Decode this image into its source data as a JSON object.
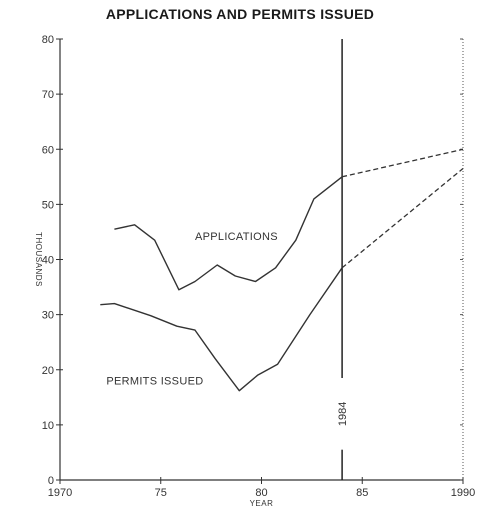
{
  "chart_data": {
    "type": "line",
    "title": "APPLICATIONS AND PERMITS ISSUED",
    "xlabel": "YEAR",
    "ylabel": "THOUSANDS",
    "xlim": [
      1970,
      1990
    ],
    "ylim": [
      0,
      80
    ],
    "x_ticks": [
      {
        "value": 1970,
        "label": "1970"
      },
      {
        "value": 1975,
        "label": "75"
      },
      {
        "value": 1980,
        "label": "80"
      },
      {
        "value": 1985,
        "label": "85"
      },
      {
        "value": 1990,
        "label": "1990"
      }
    ],
    "y_ticks": [
      0,
      10,
      20,
      30,
      40,
      50,
      60,
      70,
      80
    ],
    "grid": false,
    "reference_line": {
      "x": 1984,
      "label": "1984"
    },
    "series": [
      {
        "name": "APPLICATIONS",
        "color": "#333333",
        "points": [
          {
            "x": 1972.7,
            "y": 45.5
          },
          {
            "x": 1973.7,
            "y": 46.3
          },
          {
            "x": 1974.7,
            "y": 43.5
          },
          {
            "x": 1975.9,
            "y": 34.5
          },
          {
            "x": 1976.7,
            "y": 36.0
          },
          {
            "x": 1977.8,
            "y": 39.0
          },
          {
            "x": 1978.7,
            "y": 37.0
          },
          {
            "x": 1979.7,
            "y": 36.0
          },
          {
            "x": 1980.7,
            "y": 38.5
          },
          {
            "x": 1981.7,
            "y": 43.5
          },
          {
            "x": 1982.6,
            "y": 51.0
          },
          {
            "x": 1984.0,
            "y": 55.0
          }
        ],
        "projection": [
          {
            "x": 1984.0,
            "y": 55.0
          },
          {
            "x": 1990.0,
            "y": 60.0
          }
        ]
      },
      {
        "name": "PERMITS ISSUED",
        "color": "#333333",
        "points": [
          {
            "x": 1972.0,
            "y": 31.8
          },
          {
            "x": 1972.7,
            "y": 32.0
          },
          {
            "x": 1974.5,
            "y": 29.8
          },
          {
            "x": 1975.8,
            "y": 27.9
          },
          {
            "x": 1976.7,
            "y": 27.2
          },
          {
            "x": 1977.7,
            "y": 22.0
          },
          {
            "x": 1978.9,
            "y": 16.2
          },
          {
            "x": 1979.8,
            "y": 19.0
          },
          {
            "x": 1980.8,
            "y": 21.0
          },
          {
            "x": 1982.4,
            "y": 30.0
          },
          {
            "x": 1984.0,
            "y": 38.5
          }
        ],
        "projection": [
          {
            "x": 1984.0,
            "y": 38.5
          },
          {
            "x": 1990.0,
            "y": 56.5
          }
        ]
      }
    ]
  }
}
